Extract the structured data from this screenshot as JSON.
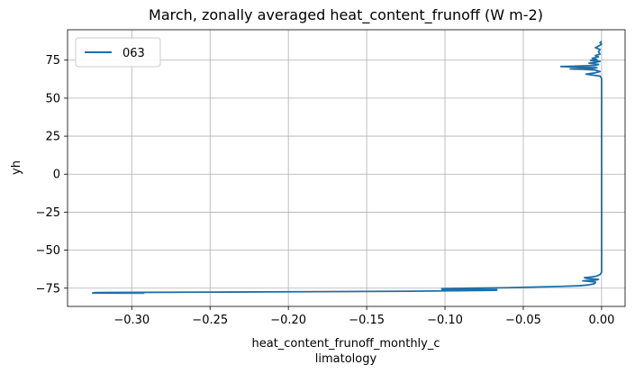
{
  "chart_data": {
    "type": "line",
    "title": "March, zonally averaged heat_content_frunoff (W m-2)",
    "xlabel": [
      "heat_content_frunoff_monthly_c",
      "limatology"
    ],
    "ylabel": "yh",
    "xlim": [
      -0.341,
      0.015
    ],
    "ylim": [
      -87,
      95
    ],
    "xticks": [
      -0.3,
      -0.25,
      -0.2,
      -0.15,
      -0.1,
      -0.05,
      0.0
    ],
    "xtick_labels": [
      "−0.30",
      "−0.25",
      "−0.20",
      "−0.15",
      "−0.10",
      "−0.05",
      "0.00"
    ],
    "yticks": [
      -75,
      -50,
      -25,
      0,
      25,
      50,
      75
    ],
    "ytick_labels": [
      "−75",
      "−50",
      "−25",
      "0",
      "25",
      "50",
      "75"
    ],
    "grid": true,
    "legend": "upper-left",
    "series": [
      {
        "name": "063",
        "color": "#1f6fa8",
        "points": [
          [
            -0.292,
            -78.3
          ],
          [
            -0.325,
            -78.2
          ],
          [
            -0.323,
            -77.9
          ],
          [
            -0.25,
            -77.6
          ],
          [
            -0.18,
            -77.3
          ],
          [
            -0.12,
            -77.0
          ],
          [
            -0.095,
            -76.7
          ],
          [
            -0.067,
            -76.4
          ],
          [
            -0.067,
            -76.0
          ],
          [
            -0.102,
            -75.8
          ],
          [
            -0.102,
            -75.3
          ],
          [
            -0.085,
            -75.0
          ],
          [
            -0.06,
            -74.7
          ],
          [
            -0.04,
            -74.2
          ],
          [
            -0.025,
            -73.8
          ],
          [
            -0.014,
            -73.4
          ],
          [
            -0.008,
            -72.8
          ],
          [
            -0.005,
            -72.2
          ],
          [
            -0.004,
            -71.6
          ],
          [
            -0.004,
            -71.0
          ],
          [
            -0.007,
            -70.6
          ],
          [
            -0.012,
            -70.2
          ],
          [
            -0.004,
            -69.7
          ],
          [
            -0.002,
            -69.2
          ],
          [
            -0.009,
            -68.6
          ],
          [
            -0.011,
            -68.1
          ],
          [
            -0.006,
            -67.6
          ],
          [
            -0.003,
            -67.0
          ],
          [
            -0.001,
            -66.0
          ],
          [
            0.0,
            -64.5
          ],
          [
            0.0,
            -40.0
          ],
          [
            0.0,
            0.0
          ],
          [
            0.0,
            40.0
          ],
          [
            0.0,
            63.0
          ],
          [
            -0.001,
            64.5
          ],
          [
            -0.006,
            65.2
          ],
          [
            -0.01,
            65.8
          ],
          [
            -0.005,
            66.5
          ],
          [
            -0.001,
            67.5
          ],
          [
            -0.004,
            68.5
          ],
          [
            -0.012,
            69.0
          ],
          [
            -0.02,
            69.2
          ],
          [
            -0.006,
            69.6
          ],
          [
            -0.003,
            70.0
          ],
          [
            -0.018,
            70.5
          ],
          [
            -0.026,
            70.8
          ],
          [
            -0.015,
            71.1
          ],
          [
            -0.004,
            71.5
          ],
          [
            -0.002,
            72.2
          ],
          [
            -0.008,
            73.0
          ],
          [
            -0.004,
            73.6
          ],
          [
            -0.001,
            74.2
          ],
          [
            -0.007,
            74.8
          ],
          [
            -0.003,
            75.4
          ],
          [
            -0.006,
            76.2
          ],
          [
            -0.002,
            77.2
          ],
          [
            -0.004,
            78.0
          ],
          [
            -0.001,
            79.0
          ],
          [
            -0.002,
            80.5
          ],
          [
            -0.001,
            82.0
          ],
          [
            -0.004,
            83.2
          ],
          [
            -0.002,
            84.2
          ],
          [
            0.0,
            85.5
          ],
          [
            -0.001,
            86.5
          ],
          [
            0.0,
            87.5
          ]
        ]
      }
    ]
  }
}
